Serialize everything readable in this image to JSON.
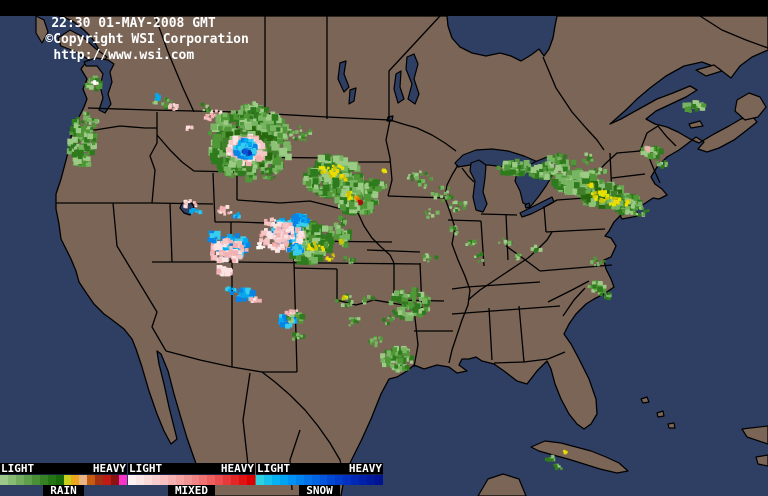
{
  "header": {
    "time": "22:30 01-MAY-2008 GMT",
    "copyright": "©Copyright WSI Corporation",
    "url": "http://www.wsi.com"
  },
  "colors": {
    "water": "#2f3f63",
    "land": "#7a6557",
    "border": "#000000",
    "header_bg": "#000000",
    "header_fg": "#ffffff"
  },
  "legend": {
    "panels": [
      {
        "id": "rain",
        "light_label": "LIGHT",
        "heavy_label": "HEAVY",
        "label": "RAIN",
        "stops": [
          "#9cc98a",
          "#88bb74",
          "#73ac5f",
          "#5f9e4a",
          "#4a8f36",
          "#368124",
          "#247414",
          "#176809",
          "#cbd01b",
          "#eca61b",
          "#e9b586",
          "#c45c12",
          "#a33112",
          "#bd1b13",
          "#8c1111",
          "#f933c8"
        ]
      },
      {
        "id": "mixed",
        "light_label": "LIGHT",
        "heavy_label": "HEAVY",
        "label": "MIXED",
        "stops": [
          "#fdf2f2",
          "#fce6e6",
          "#fbdada",
          "#f9cdcd",
          "#f8c0c0",
          "#f6b2b2",
          "#f4a3a3",
          "#f29393",
          "#f08383",
          "#ee7272",
          "#ec6060",
          "#e94d4d",
          "#e63a3a",
          "#e32626",
          "#e01212",
          "#dd0000"
        ]
      },
      {
        "id": "snow",
        "light_label": "LIGHT",
        "heavy_label": "HEAVY",
        "label": "SNOW",
        "stops": [
          "#2fd0e0",
          "#16c2ec",
          "#06b2f2",
          "#00a2f4",
          "#0092f2",
          "#0082ee",
          "#0072ea",
          "#0063e4",
          "#0055dc",
          "#0048d4",
          "#003cca",
          "#0031c0",
          "#0028b6",
          "#0020aa",
          "#00199e",
          "#001392"
        ]
      }
    ]
  },
  "map": {
    "mainland": "58,16 447,16 448,26 452,38 460,47 472,53 486,56 500,53 511,56 521,61 531,55 539,49 544,56 549,49 553,38 555,26 557,16 768,16 768,50 752,57 740,66 731,78 718,68 702,62 684,66 666,76 650,88 637,99 627,109 618,117 610,124 621,119 639,109 657,99 673,93 690,86 697,90 686,97 671,104 656,111 646,119 655,124 667,127 678,132 690,139 699,143 714,134 729,126 741,119 752,116 757,122 747,130 734,140 719,148 707,152 698,149 704,142 696,137 687,144 679,150 667,157 657,167 651,177 655,184 662,189 667,195 659,199 653,198 644,204 634,210 621,215 614,222 609,231 605,236 611,238 616,246 611,257 604,260 606,269 611,279 614,287 604,294 594,299 586,304 576,314 569,324 564,334 571,344 579,359 589,379 596,399 597,414 591,424 584,429 577,424 569,414 561,399 555,384 551,369 547,361 537,371 527,384 517,381 504,371 494,364 482,361 476,357 469,359 462,359 459,365 467,371 457,373 449,367 437,365 424,369 414,365 407,371 397,377 389,379 381,394 371,419 361,441 351,461 344,479 341,496 205,496 201,478 194,458 187,438 181,418 174,394 168,371 161,354 157,351 159,364 164,384 169,407 174,427 177,439 171,444 164,431 157,414 149,391 142,367 136,349 132,339 124,329 111,319 104,314 94,304 87,294 79,282 76,271 71,259 61,239 59,224 56,209 56,194 61,179 65,164 69,149 71,137 75,127 79,117 84,107 87,99 83,89 87,79 81,69 87,61 94,57 98,48 92,38 84,30 74,22 64,17",
    "islands": [
      "58,38 70,30 83,37 96,49 107,57 100,65 88,59 74,51 61,46",
      "36,16 44,20 48,32 42,43 36,33",
      "696,70 714,65 722,71 706,76",
      "737,100 749,93 760,97 766,107 758,117 745,120 735,111",
      "689,124 700,121 703,126 691,128",
      "620,215 637,212 638,216 622,219",
      "531,447 545,441 561,443 576,447 591,451 606,457 619,463 628,471 617,473 600,469 584,464 568,459 553,455 539,451",
      "742,429 768,426 768,444 747,437",
      "756,457 768,455 768,466 758,464",
      "641,399 647,397 649,402 643,403",
      "657,413 663,411 664,416 658,417",
      "668,424 674,423 675,428 669,428",
      "478,496 488,479 503,474 519,479 526,496"
    ],
    "lakes": [
      "455,163 463,155 476,150 492,149 508,151 524,156 538,162 549,168 553,172 541,173 524,169 506,167 488,165 470,165 458,167",
      "471,163 479,160 486,165 485,178 483,192 487,204 483,212 476,210 473,197 475,181 470,171",
      "517,173 527,166 537,161 547,157 555,162 549,170 552,176 546,186 539,196 531,206 523,203 520,191 515,181",
      "525,205 529,203 530,207 526,208",
      "520,213 532,207 544,201 552,197 554,202 543,208 531,214 522,217",
      "558,181 568,176 580,173 591,174 593,179 582,183 569,185 560,186",
      "407,57 414,54 418,64 414,79 419,94 415,104 408,99 412,84 406,69",
      "396,74 401,71 400,87 404,99 398,103 394,89",
      "340,63 346,61 344,74 349,87 344,92 338,79",
      "350,90 356,88 354,101 349,104",
      "182,203 190,200 194,207 190,215 184,213 180,208",
      "388,117 393,116 392,121 387,121",
      "84,62 96,58 108,60 114,64 110,72 112,82 108,94 111,104 105,113 99,110 103,98 100,86 103,74 97,66 86,66"
    ],
    "borders": [
      "155,16 168,52 183,88 194,112",
      "265,16 265,117",
      "327,16 327,119",
      "440,16 389,71 389,119",
      "543,57 556,88 572,112 586,128 597,140 604,150",
      "700,16 722,30 746,40 768,48",
      "88,108 150,110 237,112 327,117 390,120",
      "390,120 403,124 417,128 432,135 445,143 456,151",
      "593,177 605,164 617,153 640,151",
      "640,151 647,133 658,126 667,137 676,146",
      "72,128 95,130 120,126 145,128 157,128",
      "157,112 157,143 150,156 155,170 152,203",
      "56,203 152,203 213,204",
      "113,203 117,246 157,312 152,327 166,351",
      "170,204 172,262",
      "213,173 215,222",
      "157,135 170,150 182,162 194,171 237,172",
      "237,112 237,200",
      "215,222 239,222 292,224",
      "231,222 231,262",
      "152,262 232,262",
      "232,262 420,264",
      "292,224 294,262",
      "232,262 232,367",
      "294,263 297,372",
      "294,268 337,269",
      "337,269 337,300",
      "337,300 356,305 374,300 392,303 408,306 420,309",
      "262,372 297,372",
      "420,263 422,309",
      "414,331 453,331",
      "414,309 418,345 414,367",
      "294,241 392,242",
      "358,213 364,226 372,238 381,247 390,255 394,263",
      "394,263 394,300",
      "394,300 444,301",
      "237,200 280,203 310,201 330,206 345,210 358,213",
      "237,157 330,158 345,162 390,162",
      "390,120 386,140 390,158 392,180 388,196",
      "388,196 445,198",
      "367,250 420,252",
      "445,198 450,212 455,228 452,244 458,260 465,276 470,290 468,305 462,320 457,335 452,350 449,363",
      "458,165 452,175 447,185 445,198",
      "462,168 468,176 474,182",
      "448,220 481,221",
      "481,221 484,266",
      "468,300 480,290 492,282 504,274 516,266 528,258 538,249 547,240 552,232",
      "506,214 508,260",
      "481,214 517,215",
      "452,289 467,287 540,282",
      "452,314 560,306",
      "544,206 546,232",
      "546,206 557,200 600,197",
      "546,232 605,229",
      "540,271 612,265",
      "548,302 572,290 589,281",
      "563,316 574,300 585,288",
      "519,306 524,362",
      "489,308 492,360",
      "494,363 524,362",
      "524,362 548,359 565,352",
      "540,271 520,256 506,246",
      "610,153 612,196",
      "612,178 645,174",
      "648,155 655,172 660,183",
      "166,351 200,360 232,367 262,372",
      "262,372 275,382 290,395 305,410 318,426 330,443 340,460 344,478",
      "250,373 243,420 248,465",
      "300,430 290,460 292,490"
    ],
    "palettes": {
      "g": [
        "#9ccb86",
        "#78b562",
        "#4f9737",
        "#2e7b1d"
      ],
      "g2": [
        "#67a84e",
        "#417f2b",
        "#27680f",
        "#8cc276"
      ],
      "y": [
        "#e6e300",
        "#ccc400",
        "#f2da00"
      ],
      "o": [
        "#f09c00",
        "#dd7700"
      ],
      "r": [
        "#cf1812",
        "#a31010"
      ],
      "p": [
        "#f6c6c6",
        "#f3b0b0",
        "#fce4e4"
      ],
      "w": [
        "#ffffff",
        "#ffeaea"
      ],
      "c": [
        "#38cdee",
        "#00aaf2",
        "#0784e8"
      ],
      "b": [
        "#0b53d6",
        "#0636b0"
      ]
    },
    "echoes": [
      [
        82,
        142,
        13,
        26,
        110,
        3,
        "g"
      ],
      [
        90,
        120,
        8,
        10,
        20,
        2,
        "g"
      ],
      [
        95,
        84,
        8,
        6,
        22,
        3,
        "g"
      ],
      [
        95,
        82,
        3,
        2,
        5,
        2,
        "w"
      ],
      [
        162,
        102,
        10,
        7,
        14,
        2,
        "g"
      ],
      [
        172,
        107,
        5,
        4,
        8,
        2,
        "p"
      ],
      [
        158,
        97,
        3,
        3,
        5,
        2,
        "c"
      ],
      [
        190,
        128,
        4,
        3,
        6,
        2,
        "p"
      ],
      [
        215,
        116,
        10,
        6,
        16,
        2,
        "p"
      ],
      [
        205,
        108,
        6,
        4,
        8,
        2,
        "g"
      ],
      [
        250,
        143,
        42,
        36,
        300,
        4,
        "g"
      ],
      [
        250,
        148,
        26,
        22,
        150,
        4,
        "g2"
      ],
      [
        247,
        150,
        19,
        15,
        120,
        3,
        "p"
      ],
      [
        245,
        149,
        11,
        9,
        80,
        3,
        "c"
      ],
      [
        247,
        152,
        5,
        4,
        12,
        2,
        "b"
      ],
      [
        252,
        112,
        16,
        9,
        40,
        3,
        "g"
      ],
      [
        230,
        165,
        12,
        8,
        25,
        3,
        "g"
      ],
      [
        268,
        175,
        10,
        7,
        15,
        2,
        "g"
      ],
      [
        300,
        133,
        13,
        8,
        25,
        2,
        "g"
      ],
      [
        333,
        176,
        28,
        20,
        220,
        4,
        "g"
      ],
      [
        331,
        170,
        12,
        7,
        22,
        2,
        "y"
      ],
      [
        345,
        178,
        5,
        3,
        6,
        2,
        "y"
      ],
      [
        357,
        198,
        20,
        16,
        150,
        4,
        "g"
      ],
      [
        352,
        196,
        7,
        4,
        12,
        2,
        "y"
      ],
      [
        357,
        199,
        3,
        2,
        5,
        2,
        "o"
      ],
      [
        360,
        202,
        2,
        2,
        4,
        2,
        "r"
      ],
      [
        375,
        186,
        10,
        7,
        25,
        3,
        "g"
      ],
      [
        383,
        171,
        3,
        2,
        5,
        2,
        "y"
      ],
      [
        340,
        233,
        10,
        16,
        35,
        3,
        "g"
      ],
      [
        342,
        241,
        2,
        2,
        4,
        2,
        "y"
      ],
      [
        350,
        260,
        6,
        4,
        8,
        2,
        "g"
      ],
      [
        310,
        243,
        22,
        20,
        160,
        4,
        "g"
      ],
      [
        316,
        247,
        9,
        5,
        12,
        2,
        "y"
      ],
      [
        330,
        257,
        5,
        3,
        7,
        2,
        "y"
      ],
      [
        345,
        300,
        9,
        7,
        16,
        2,
        "g"
      ],
      [
        345,
        298,
        2,
        2,
        4,
        2,
        "y"
      ],
      [
        287,
        231,
        15,
        11,
        90,
        3,
        "c"
      ],
      [
        285,
        232,
        6,
        5,
        18,
        3,
        "b"
      ],
      [
        282,
        238,
        22,
        14,
        90,
        3,
        "p"
      ],
      [
        300,
        221,
        8,
        6,
        28,
        3,
        "c"
      ],
      [
        296,
        249,
        7,
        5,
        20,
        3,
        "c"
      ],
      [
        270,
        222,
        6,
        4,
        12,
        2,
        "p"
      ],
      [
        233,
        246,
        16,
        11,
        85,
        3,
        "c"
      ],
      [
        228,
        251,
        19,
        11,
        60,
        3,
        "p"
      ],
      [
        214,
        237,
        6,
        5,
        14,
        3,
        "c"
      ],
      [
        224,
        271,
        7,
        5,
        16,
        3,
        "p"
      ],
      [
        231,
        291,
        6,
        4,
        10,
        2,
        "c"
      ],
      [
        245,
        295,
        9,
        6,
        25,
        3,
        "c"
      ],
      [
        254,
        300,
        7,
        4,
        10,
        2,
        "p"
      ],
      [
        260,
        246,
        5,
        3,
        8,
        2,
        "w"
      ],
      [
        190,
        204,
        7,
        4,
        12,
        2,
        "p"
      ],
      [
        196,
        212,
        5,
        3,
        8,
        2,
        "c"
      ],
      [
        225,
        211,
        9,
        5,
        12,
        2,
        "p"
      ],
      [
        237,
        214,
        5,
        4,
        8,
        2,
        "c"
      ],
      [
        287,
        321,
        8,
        6,
        20,
        3,
        "c"
      ],
      [
        296,
        317,
        8,
        6,
        16,
        3,
        "g"
      ],
      [
        291,
        311,
        6,
        4,
        8,
        2,
        "p"
      ],
      [
        298,
        337,
        6,
        4,
        10,
        2,
        "g"
      ],
      [
        355,
        322,
        8,
        5,
        10,
        2,
        "g"
      ],
      [
        390,
        320,
        7,
        4,
        8,
        2,
        "g"
      ],
      [
        410,
        304,
        20,
        15,
        80,
        3,
        "g"
      ],
      [
        398,
        359,
        16,
        12,
        70,
        3,
        "g"
      ],
      [
        377,
        341,
        8,
        5,
        12,
        2,
        "g"
      ],
      [
        368,
        300,
        6,
        4,
        8,
        2,
        "g"
      ],
      [
        420,
        180,
        13,
        9,
        25,
        2,
        "g"
      ],
      [
        443,
        194,
        11,
        7,
        20,
        2,
        "g"
      ],
      [
        458,
        206,
        9,
        6,
        14,
        2,
        "g"
      ],
      [
        432,
        214,
        7,
        5,
        9,
        2,
        "g"
      ],
      [
        455,
        229,
        7,
        5,
        10,
        2,
        "g"
      ],
      [
        470,
        244,
        6,
        4,
        8,
        2,
        "g"
      ],
      [
        480,
        258,
        5,
        4,
        7,
        2,
        "g"
      ],
      [
        430,
        258,
        7,
        4,
        8,
        2,
        "g"
      ],
      [
        505,
        242,
        6,
        4,
        8,
        2,
        "g"
      ],
      [
        520,
        257,
        5,
        4,
        7,
        2,
        "g"
      ],
      [
        536,
        249,
        5,
        3,
        6,
        2,
        "g"
      ],
      [
        516,
        168,
        18,
        7,
        45,
        3,
        "g"
      ],
      [
        543,
        171,
        14,
        7,
        40,
        3,
        "g"
      ],
      [
        560,
        163,
        14,
        8,
        35,
        3,
        "g"
      ],
      [
        578,
        183,
        24,
        12,
        110,
        4,
        "g"
      ],
      [
        602,
        195,
        22,
        11,
        120,
        4,
        "g2"
      ],
      [
        625,
        204,
        16,
        9,
        60,
        3,
        "g"
      ],
      [
        640,
        210,
        10,
        6,
        20,
        2,
        "g"
      ],
      [
        600,
        196,
        9,
        6,
        20,
        2,
        "y"
      ],
      [
        614,
        201,
        6,
        5,
        14,
        2,
        "y"
      ],
      [
        627,
        203,
        3,
        2,
        6,
        2,
        "y"
      ],
      [
        592,
        186,
        4,
        3,
        6,
        2,
        "y"
      ],
      [
        588,
        159,
        9,
        5,
        12,
        2,
        "g"
      ],
      [
        600,
        171,
        7,
        4,
        9,
        2,
        "g"
      ],
      [
        694,
        107,
        11,
        5,
        22,
        3,
        "g"
      ],
      [
        651,
        151,
        11,
        7,
        22,
        3,
        "g"
      ],
      [
        648,
        149,
        2,
        2,
        4,
        2,
        "p"
      ],
      [
        661,
        164,
        7,
        4,
        10,
        2,
        "g"
      ],
      [
        598,
        262,
        7,
        4,
        10,
        2,
        "g"
      ],
      [
        597,
        289,
        9,
        7,
        22,
        3,
        "g"
      ],
      [
        607,
        296,
        5,
        4,
        8,
        2,
        "g"
      ],
      [
        548,
        458,
        7,
        3,
        10,
        2,
        "g"
      ],
      [
        558,
        467,
        5,
        3,
        7,
        2,
        "g"
      ],
      [
        566,
        452,
        3,
        2,
        4,
        2,
        "y"
      ]
    ]
  }
}
